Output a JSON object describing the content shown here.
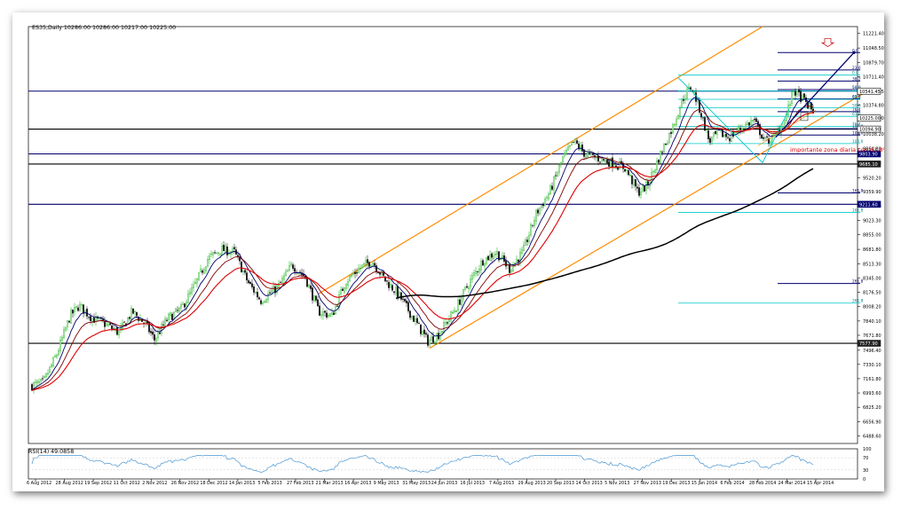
{
  "chart_data": {
    "type": "candlestick",
    "header": "ES35,Daily  10286.00 10286.00 10217.00 10225.00",
    "indicator_label": "RSI(14) 49.0858",
    "annotation": "importante zona diaria con 61.8%",
    "ylim": [
      6400,
      11300
    ],
    "price_ticks": [
      "11221.40",
      "11048.50",
      "10879.70",
      "10711.40",
      "10541.45",
      "10374.80",
      "10225.00",
      "10038.20",
      "9864.80",
      "9695.20",
      "9520.20",
      "9359.90",
      "9191.60",
      "9023.30",
      "8855.00",
      "8681.80",
      "8513.30",
      "8345.00",
      "8176.50",
      "8008.20",
      "7840.10",
      "7671.80",
      "7496.40",
      "7330.10",
      "7161.80",
      "6993.60",
      "6825.20",
      "6656.90",
      "6488.60"
    ],
    "price_tick_values": [
      11221.4,
      11048.5,
      10879.7,
      10711.4,
      10541.45,
      10374.8,
      10225,
      10038.2,
      9864.8,
      9695.2,
      9520.2,
      9359.9,
      9191.6,
      9023.3,
      8855,
      8681.8,
      8513.3,
      8345,
      8176.5,
      8008.2,
      7840.1,
      7671.8,
      7496.4,
      7330.1,
      7161.8,
      6993.6,
      6825.2,
      6656.9,
      6488.6
    ],
    "x_labels": [
      "6 Aug 2012",
      "28 Aug 2012",
      "19 Sep 2012",
      "11 Oct 2012",
      "2 Nov 2012",
      "26 Nov 2012",
      "18 Dec 2012",
      "14 Jan 2013",
      "5 Feb 2013",
      "27 Feb 2013",
      "21 Mar 2013",
      "16 Apr 2013",
      "9 May 2013",
      "31 May 2013",
      "24 Jun 2013",
      "16 Jul 2013",
      "7 Aug 2013",
      "29 Aug 2013",
      "20 Sep 2013",
      "14 Oct 2013",
      "5 Nov 2013",
      "27 Nov 2013",
      "19 Dec 2013",
      "15 Jan 2014",
      "6 Feb 2014",
      "28 Feb 2014",
      "24 Mar 2014",
      "15 Apr 2014"
    ],
    "price_boxes": [
      {
        "label": "10541.45",
        "value": 10541.45,
        "style": "outline"
      },
      {
        "label": "10225.00",
        "value": 10225,
        "style": "outline"
      },
      {
        "label": "10094.90",
        "value": 10094.9,
        "style": "outline"
      },
      {
        "label": "9803.90",
        "value": 9803.9,
        "style": "navy"
      },
      {
        "label": "9685.10",
        "value": 9685.1,
        "style": "dark"
      },
      {
        "label": "9211.60",
        "value": 9211.6,
        "style": "navy"
      },
      {
        "label": "7577.90",
        "value": 7577.9,
        "style": "dark"
      }
    ],
    "horizontal_levels": [
      {
        "value": 10541.45,
        "color": "#00006e"
      },
      {
        "value": 10094.9,
        "color": "#000000"
      },
      {
        "value": 9803.9,
        "color": "#00006e"
      },
      {
        "value": 9685.1,
        "color": "#000000"
      },
      {
        "value": 9211.6,
        "color": "#00006e"
      },
      {
        "value": 7577.9,
        "color": "#000000"
      }
    ],
    "fib_upper": [
      {
        "label": "0.0",
        "value": 10995
      },
      {
        "label": "23.6",
        "value": 10790
      },
      {
        "label": "38.2",
        "value": 10660
      },
      {
        "label": "50.0",
        "value": 10560
      },
      {
        "label": "61.8",
        "value": 10450
      },
      {
        "label": "76.4",
        "value": 10300
      },
      {
        "label": "100.0",
        "value": 10100
      }
    ],
    "fib_lower": [
      {
        "label": "100.0",
        "value": 10025
      },
      {
        "label": "161.8",
        "value": 9345
      },
      {
        "label": "261.8",
        "value": 8280
      }
    ],
    "fib_cyan": [
      {
        "label": "0.0",
        "value": 10730
      },
      {
        "label": "23.6",
        "value": 10545
      },
      {
        "label": "38.2",
        "value": 10445
      },
      {
        "label": "50.0",
        "value": 10345
      },
      {
        "label": "61.8",
        "value": 10245
      },
      {
        "label": "76.4",
        "value": 10125
      },
      {
        "label": "100.0",
        "value": 9925
      },
      {
        "label": "161.8",
        "value": 9115
      },
      {
        "label": "261.8",
        "value": 8050
      }
    ],
    "colors": {
      "ema_fast": "#00006e",
      "ema_mid": "#800000",
      "ema_slow": "#e00000",
      "sma_long": "#000000",
      "channel": "#ff8c00",
      "fib": "#00c8c8",
      "rsi": "#4b96d2",
      "candle_up": "#00aa00",
      "candle_down": "#000000",
      "arrow": "#c80000",
      "annotation": "#e00000"
    }
  }
}
